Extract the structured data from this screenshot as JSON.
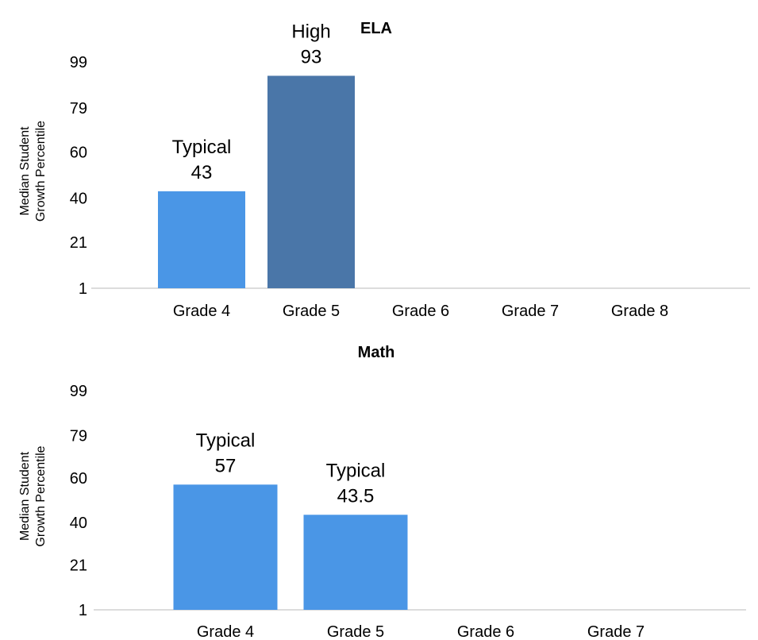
{
  "chart_data": [
    {
      "type": "bar",
      "title": "ELA",
      "ylabel": [
        "Median Student",
        "Growth Percentile"
      ],
      "yticks": [
        1,
        21,
        40,
        60,
        79,
        99
      ],
      "ylim": [
        1,
        99
      ],
      "categories": [
        "Grade 4",
        "Grade 5",
        "Grade 6",
        "Grade 7",
        "Grade 8"
      ],
      "values": [
        43,
        93,
        null,
        null,
        null
      ],
      "bar_labels": [
        "Typical",
        "High",
        "",
        "",
        ""
      ],
      "value_labels": [
        "43",
        "93",
        "",
        "",
        ""
      ],
      "colors": [
        "#4a96e6",
        "#4a76a8",
        "",
        "",
        ""
      ],
      "grid": false
    },
    {
      "type": "bar",
      "title": "Math",
      "ylabel": [
        "Median Student",
        "Growth Percentile"
      ],
      "yticks": [
        1,
        21,
        40,
        60,
        79,
        99
      ],
      "ylim": [
        1,
        99
      ],
      "categories": [
        "Grade 4",
        "Grade 5",
        "Grade 6",
        "Grade 7"
      ],
      "values": [
        57,
        43.5,
        null,
        null
      ],
      "bar_labels": [
        "Typical",
        "Typical",
        "",
        ""
      ],
      "value_labels": [
        "57",
        "43.5",
        "",
        ""
      ],
      "colors": [
        "#4a96e6",
        "#4a96e6",
        "",
        ""
      ],
      "grid": false
    }
  ]
}
